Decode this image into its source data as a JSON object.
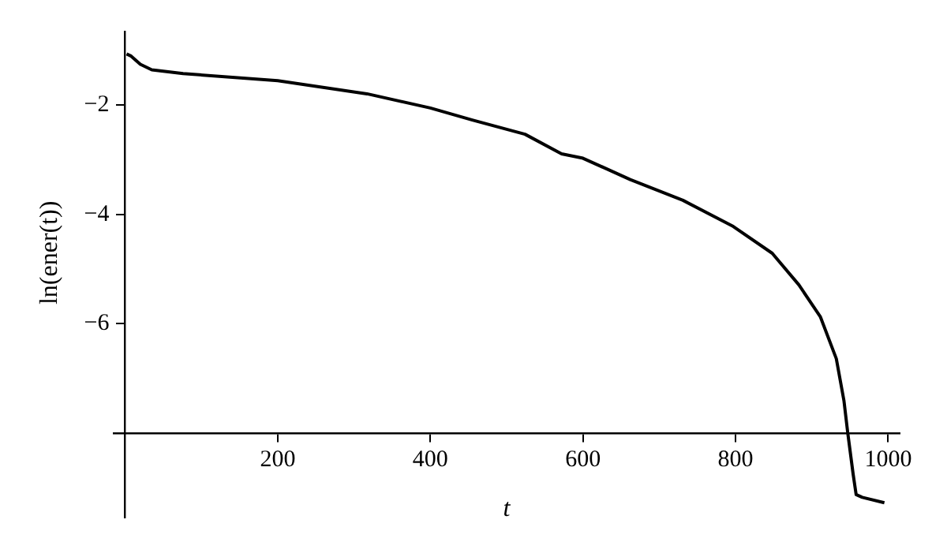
{
  "chart_data": {
    "type": "line",
    "xlabel": "t",
    "ylabel": "ln(ener(t))",
    "x": [
      2,
      8,
      20,
      35,
      76,
      200,
      317,
      400,
      455,
      524,
      572,
      600,
      662,
      731,
      797,
      848,
      883,
      911,
      932,
      942,
      947,
      954,
      958,
      966,
      995
    ],
    "series": [
      {
        "color": "#000000",
        "values": [
          -1.06,
          -1.1,
          -1.25,
          -1.35,
          -1.42,
          -1.55,
          -1.79,
          -2.05,
          -2.27,
          -2.53,
          -2.89,
          -2.97,
          -3.36,
          -3.74,
          -4.22,
          -4.71,
          -5.29,
          -5.87,
          -6.64,
          -7.41,
          -8.0,
          -8.75,
          -9.13,
          -9.18,
          -9.28
        ]
      }
    ],
    "xlim": [
      -15,
      1015
    ],
    "xticks": [
      200,
      400,
      600,
      800,
      1000
    ],
    "ylim": [
      -9.55,
      -0.65
    ],
    "yticks": [
      -2,
      -4,
      -6,
      {
        "value": -8,
        "label": null
      }
    ],
    "grid": false,
    "marker": "none",
    "line_style": "solid",
    "legend": false
  }
}
